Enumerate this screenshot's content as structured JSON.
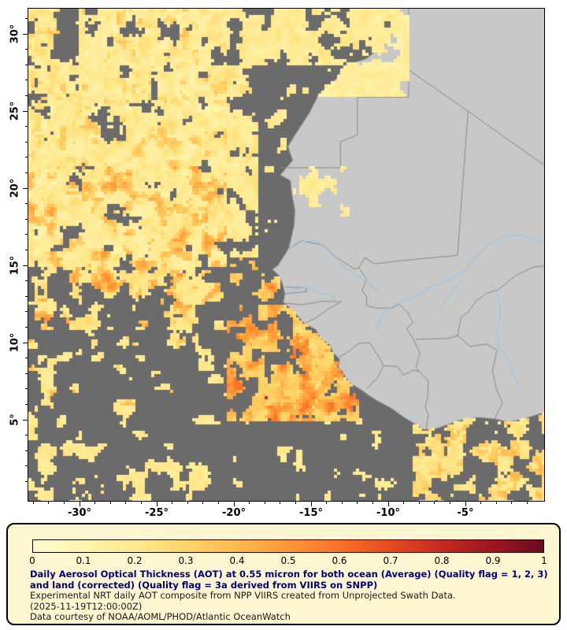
{
  "map": {
    "y_axis_labels": [
      {
        "v": 30,
        "label": "30°"
      },
      {
        "v": 25,
        "label": "25°"
      },
      {
        "v": 20,
        "label": "20°"
      },
      {
        "v": 15,
        "label": "15°"
      },
      {
        "v": 10,
        "label": "10°"
      },
      {
        "v": 5,
        "label": "5°"
      }
    ],
    "x_axis_labels": [
      {
        "v": -30,
        "label": "-30°"
      },
      {
        "v": -25,
        "label": "-25°"
      },
      {
        "v": -20,
        "label": "-20°"
      },
      {
        "v": -15,
        "label": "-15°"
      },
      {
        "v": -10,
        "label": "-10°"
      },
      {
        "v": -5,
        "label": "-5°"
      }
    ]
  },
  "legend": {
    "ticks": [
      "0",
      "0.1",
      "0.2",
      "0.3",
      "0.4",
      "0.5",
      "0.6",
      "0.7",
      "0.8",
      "0.9",
      "1"
    ],
    "caption_bold": "Daily Aerosol Optical Thickness (AOT) at 0.55 micron for both ocean (Average) (Quality flag = 1, 2, 3) and land (corrected) (Quality flag = 3a derived from VIIRS on SNPP)",
    "caption_line2": "Experimental NRT daily AOT composite from NPP VIIRS created from Unprojected Swath Data.",
    "caption_line3": "(2025-11-19T12:00:00Z)",
    "caption_line4": "Data courtesy of NOAA/AOML/PHOD/Atlantic OceanWatch"
  },
  "colors": {
    "no_data": "#6b6b6b",
    "land": "#c8c8c8",
    "country_border": "#8a8a8a",
    "river": "#9cc6e6",
    "plot_border": "#000000",
    "legend_bg": "#fdf6d0",
    "legend_border": "#000000",
    "caption_bold_color": "#000080",
    "caption_text_color": "#1a1a1a",
    "colormap": [
      {
        "t": 0.0,
        "c": "#fffbd0"
      },
      {
        "t": 0.1,
        "c": "#fff3ae"
      },
      {
        "t": 0.2,
        "c": "#ffe98e"
      },
      {
        "t": 0.3,
        "c": "#ffd469"
      },
      {
        "t": 0.4,
        "c": "#ffb84d"
      },
      {
        "t": 0.5,
        "c": "#ff9736"
      },
      {
        "t": 0.6,
        "c": "#f97227"
      },
      {
        "t": 0.7,
        "c": "#e64a20"
      },
      {
        "t": 0.8,
        "c": "#c52a20"
      },
      {
        "t": 0.9,
        "c": "#9b1623"
      },
      {
        "t": 1.0,
        "c": "#6e0b20"
      }
    ]
  }
}
